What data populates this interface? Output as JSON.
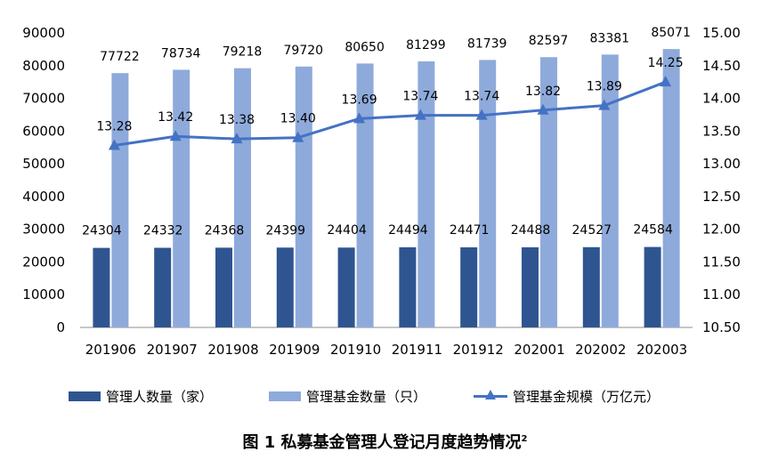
{
  "chart_data": {
    "type": "bar",
    "categories": [
      "201906",
      "201907",
      "201908",
      "201909",
      "201910",
      "201911",
      "201912",
      "202001",
      "202002",
      "202003"
    ],
    "series": [
      {
        "name": "管理人数量（家）",
        "type": "bar",
        "axis": "left",
        "color": "#2e5590",
        "values": [
          24304,
          24332,
          24368,
          24399,
          24404,
          24494,
          24471,
          24488,
          24527,
          24584
        ]
      },
      {
        "name": "管理基金数量（只）",
        "type": "bar",
        "axis": "left",
        "color": "#8eaadb",
        "values": [
          77722,
          78734,
          79218,
          79720,
          80650,
          81299,
          81739,
          82597,
          83381,
          85071
        ]
      },
      {
        "name": "管理基金规模（万亿元）",
        "type": "line",
        "axis": "right",
        "color": "#4472c4",
        "marker": "triangle",
        "values": [
          13.28,
          13.42,
          13.38,
          13.4,
          13.69,
          13.74,
          13.74,
          13.82,
          13.89,
          14.25
        ],
        "labels": [
          "13.28",
          "13.42",
          "13.38",
          "13.40",
          "13.69",
          "13.74",
          "13.74",
          "13.82",
          "13.89",
          "14.25"
        ]
      }
    ],
    "left_axis": {
      "min": 0,
      "max": 90000,
      "step": 10000
    },
    "right_axis": {
      "min": 10.5,
      "max": 15.0,
      "step": 0.5
    },
    "right_tick_labels": [
      "10.50",
      "11.00",
      "11.50",
      "12.00",
      "12.50",
      "13.00",
      "13.50",
      "14.00",
      "14.50",
      "15.00"
    ],
    "grid": false,
    "legend_position": "bottom"
  },
  "caption": {
    "text": "图 1  私募基金管理人登记月度趋势情况",
    "superscript": "2"
  }
}
